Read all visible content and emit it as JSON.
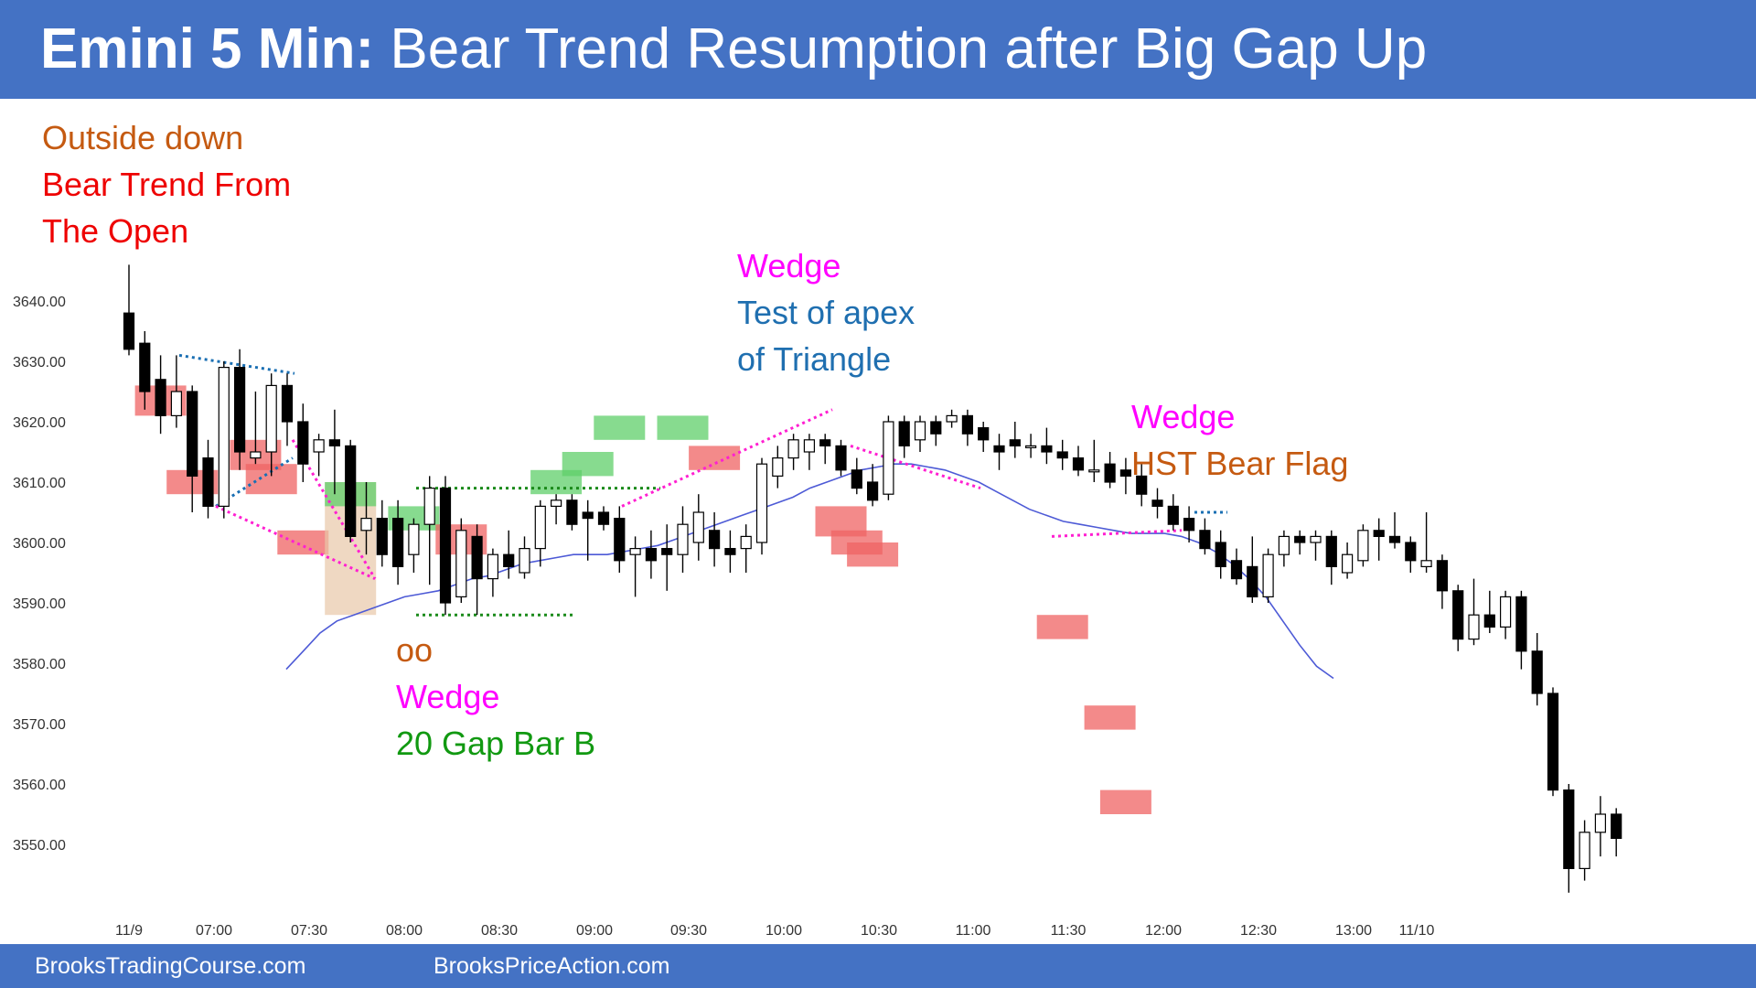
{
  "header": {
    "title_bold": "Emini 5 Min:",
    "title_rest": "Bear Trend Resumption after Big Gap Up"
  },
  "footer": {
    "link1": "BrooksTradingCourse.com",
    "link2": "BrooksPriceAction.com"
  },
  "colors": {
    "header_bg": "#4472c4",
    "candle_bear": "#000000",
    "candle_bull": "#ffffff",
    "ema": "#4d5ad6",
    "red_box": "#ef6363",
    "green_box": "#5fcf6a",
    "tan_box": "#e8c8a8",
    "magenta": "#ff1fd1",
    "blue_dotted": "#1a6fb3",
    "green_dotted": "#1b8b1b",
    "orange_text": "#c55a11",
    "red_text": "#ee0000",
    "magenta_text": "#ff00ff",
    "blue_text": "#1f6fb0",
    "green_text": "#119911"
  },
  "chart_data": {
    "type": "candlestick",
    "title": "Emini 5 Min: Bear Trend Resumption after Big Gap Up",
    "y_axis": {
      "ticks": [
        "3640.00",
        "3630.00",
        "3620.00",
        "3610.00",
        "3600.00",
        "3590.00",
        "3580.00",
        "3570.00",
        "3560.00",
        "3550.00"
      ],
      "range": [
        3542,
        3646
      ]
    },
    "x_axis": {
      "ticks": [
        "11/9",
        "07:00",
        "07:30",
        "08:00",
        "08:30",
        "09:00",
        "09:30",
        "10:00",
        "10:30",
        "11:00",
        "11:30",
        "12:00",
        "12:30",
        "13:00",
        "11/10"
      ]
    },
    "candles": [
      {
        "o": 3638,
        "h": 3646,
        "l": 3631,
        "c": 3632
      },
      {
        "o": 3633,
        "h": 3635,
        "l": 3622,
        "c": 3625
      },
      {
        "o": 3627,
        "h": 3631,
        "l": 3618,
        "c": 3621
      },
      {
        "o": 3621,
        "h": 3631,
        "l": 3619,
        "c": 3625
      },
      {
        "o": 3625,
        "h": 3626,
        "l": 3605,
        "c": 3611
      },
      {
        "o": 3614,
        "h": 3617,
        "l": 3604,
        "c": 3606
      },
      {
        "o": 3606,
        "h": 3630,
        "l": 3604,
        "c": 3629
      },
      {
        "o": 3629,
        "h": 3632,
        "l": 3612,
        "c": 3615
      },
      {
        "o": 3614,
        "h": 3625,
        "l": 3613,
        "c": 3615
      },
      {
        "o": 3615,
        "h": 3628,
        "l": 3611,
        "c": 3626
      },
      {
        "o": 3626,
        "h": 3628,
        "l": 3616,
        "c": 3620
      },
      {
        "o": 3620,
        "h": 3623,
        "l": 3610,
        "c": 3613
      },
      {
        "o": 3615,
        "h": 3618,
        "l": 3611,
        "c": 3617
      },
      {
        "o": 3617,
        "h": 3622,
        "l": 3608,
        "c": 3616
      },
      {
        "o": 3616,
        "h": 3617,
        "l": 3600,
        "c": 3601
      },
      {
        "o": 3602,
        "h": 3610,
        "l": 3598,
        "c": 3604
      },
      {
        "o": 3604,
        "h": 3607,
        "l": 3596,
        "c": 3598
      },
      {
        "o": 3604,
        "h": 3607,
        "l": 3593,
        "c": 3596
      },
      {
        "o": 3598,
        "h": 3604,
        "l": 3595,
        "c": 3603
      },
      {
        "o": 3603,
        "h": 3611,
        "l": 3593,
        "c": 3609
      },
      {
        "o": 3609,
        "h": 3611,
        "l": 3588,
        "c": 3590
      },
      {
        "o": 3591,
        "h": 3604,
        "l": 3590,
        "c": 3602
      },
      {
        "o": 3601,
        "h": 3603,
        "l": 3588,
        "c": 3594
      },
      {
        "o": 3594,
        "h": 3599,
        "l": 3591,
        "c": 3598
      },
      {
        "o": 3598,
        "h": 3602,
        "l": 3594,
        "c": 3596
      },
      {
        "o": 3595,
        "h": 3601,
        "l": 3594,
        "c": 3599
      },
      {
        "o": 3599,
        "h": 3607,
        "l": 3596,
        "c": 3606
      },
      {
        "o": 3606,
        "h": 3608,
        "l": 3603,
        "c": 3607
      },
      {
        "o": 3607,
        "h": 3608,
        "l": 3602,
        "c": 3603
      },
      {
        "o": 3605,
        "h": 3607,
        "l": 3597,
        "c": 3604
      },
      {
        "o": 3605,
        "h": 3606,
        "l": 3602,
        "c": 3603
      },
      {
        "o": 3604,
        "h": 3606,
        "l": 3595,
        "c": 3597
      },
      {
        "o": 3598,
        "h": 3601,
        "l": 3591,
        "c": 3599
      },
      {
        "o": 3599,
        "h": 3602,
        "l": 3594,
        "c": 3597
      },
      {
        "o": 3599,
        "h": 3603,
        "l": 3592,
        "c": 3598
      },
      {
        "o": 3598,
        "h": 3606,
        "l": 3595,
        "c": 3603
      },
      {
        "o": 3600,
        "h": 3608,
        "l": 3597,
        "c": 3605
      },
      {
        "o": 3602,
        "h": 3605,
        "l": 3596,
        "c": 3599
      },
      {
        "o": 3599,
        "h": 3602,
        "l": 3595,
        "c": 3598
      },
      {
        "o": 3599,
        "h": 3603,
        "l": 3595,
        "c": 3601
      },
      {
        "o": 3600,
        "h": 3614,
        "l": 3598,
        "c": 3613
      },
      {
        "o": 3611,
        "h": 3616,
        "l": 3609,
        "c": 3614
      },
      {
        "o": 3614,
        "h": 3618,
        "l": 3612,
        "c": 3617
      },
      {
        "o": 3615,
        "h": 3618,
        "l": 3612,
        "c": 3617
      },
      {
        "o": 3617,
        "h": 3618,
        "l": 3613,
        "c": 3616
      },
      {
        "o": 3616,
        "h": 3617,
        "l": 3611,
        "c": 3612
      },
      {
        "o": 3612,
        "h": 3614,
        "l": 3608,
        "c": 3609
      },
      {
        "o": 3610,
        "h": 3613,
        "l": 3606,
        "c": 3607
      },
      {
        "o": 3608,
        "h": 3621,
        "l": 3607,
        "c": 3620
      },
      {
        "o": 3620,
        "h": 3621,
        "l": 3614,
        "c": 3616
      },
      {
        "o": 3617,
        "h": 3621,
        "l": 3615,
        "c": 3620
      },
      {
        "o": 3620,
        "h": 3621,
        "l": 3616,
        "c": 3618
      },
      {
        "o": 3620,
        "h": 3622,
        "l": 3619,
        "c": 3621
      },
      {
        "o": 3621,
        "h": 3622,
        "l": 3616,
        "c": 3618
      },
      {
        "o": 3619,
        "h": 3620,
        "l": 3615,
        "c": 3617
      },
      {
        "o": 3616,
        "h": 3618,
        "l": 3612,
        "c": 3615
      },
      {
        "o": 3617,
        "h": 3620,
        "l": 3614,
        "c": 3616
      },
      {
        "o": 3616,
        "h": 3618,
        "l": 3614,
        "c": 3616
      },
      {
        "o": 3616,
        "h": 3619,
        "l": 3613,
        "c": 3615
      },
      {
        "o": 3615,
        "h": 3617,
        "l": 3612,
        "c": 3614
      },
      {
        "o": 3614,
        "h": 3616,
        "l": 3611,
        "c": 3612
      },
      {
        "o": 3612,
        "h": 3617,
        "l": 3610,
        "c": 3612
      },
      {
        "o": 3613,
        "h": 3615,
        "l": 3609,
        "c": 3610
      },
      {
        "o": 3612,
        "h": 3614,
        "l": 3608,
        "c": 3611
      },
      {
        "o": 3611,
        "h": 3613,
        "l": 3606,
        "c": 3608
      },
      {
        "o": 3607,
        "h": 3609,
        "l": 3604,
        "c": 3606
      },
      {
        "o": 3606,
        "h": 3608,
        "l": 3602,
        "c": 3603
      },
      {
        "o": 3604,
        "h": 3606,
        "l": 3600,
        "c": 3602
      },
      {
        "o": 3602,
        "h": 3604,
        "l": 3598,
        "c": 3599
      },
      {
        "o": 3600,
        "h": 3602,
        "l": 3594,
        "c": 3596
      },
      {
        "o": 3597,
        "h": 3599,
        "l": 3593,
        "c": 3594
      },
      {
        "o": 3596,
        "h": 3601,
        "l": 3590,
        "c": 3591
      },
      {
        "o": 3591,
        "h": 3599,
        "l": 3590,
        "c": 3598
      },
      {
        "o": 3598,
        "h": 3602,
        "l": 3596,
        "c": 3601
      },
      {
        "o": 3601,
        "h": 3602,
        "l": 3598,
        "c": 3600
      },
      {
        "o": 3600,
        "h": 3602,
        "l": 3597,
        "c": 3601
      },
      {
        "o": 3601,
        "h": 3602,
        "l": 3593,
        "c": 3596
      },
      {
        "o": 3595,
        "h": 3600,
        "l": 3594,
        "c": 3598
      },
      {
        "o": 3597,
        "h": 3603,
        "l": 3596,
        "c": 3602
      },
      {
        "o": 3602,
        "h": 3604,
        "l": 3597,
        "c": 3601
      },
      {
        "o": 3601,
        "h": 3605,
        "l": 3599,
        "c": 3600
      },
      {
        "o": 3600,
        "h": 3601,
        "l": 3595,
        "c": 3597
      },
      {
        "o": 3596,
        "h": 3605,
        "l": 3595,
        "c": 3597
      },
      {
        "o": 3597,
        "h": 3598,
        "l": 3589,
        "c": 3592
      },
      {
        "o": 3592,
        "h": 3593,
        "l": 3582,
        "c": 3584
      },
      {
        "o": 3584,
        "h": 3594,
        "l": 3583,
        "c": 3588
      },
      {
        "o": 3588,
        "h": 3592,
        "l": 3585,
        "c": 3586
      },
      {
        "o": 3586,
        "h": 3592,
        "l": 3584,
        "c": 3591
      },
      {
        "o": 3591,
        "h": 3592,
        "l": 3579,
        "c": 3582
      },
      {
        "o": 3582,
        "h": 3585,
        "l": 3573,
        "c": 3575
      },
      {
        "o": 3575,
        "h": 3576,
        "l": 3558,
        "c": 3559
      },
      {
        "o": 3559,
        "h": 3560,
        "l": 3542,
        "c": 3546
      },
      {
        "o": 3546,
        "h": 3554,
        "l": 3544,
        "c": 3552
      },
      {
        "o": 3552,
        "h": 3558,
        "l": 3548,
        "c": 3555
      },
      {
        "o": 3555,
        "h": 3556,
        "l": 3548,
        "c": 3551
      }
    ],
    "ema_20": [
      3579,
      3582,
      3585,
      3587,
      3588,
      3589,
      3590,
      3591,
      3591.5,
      3592,
      3593,
      3594,
      3594.5,
      3595.5,
      3596.5,
      3597,
      3597.5,
      3598,
      3598,
      3598,
      3598.5,
      3599,
      3599.5,
      3600.5,
      3601.5,
      3602.5,
      3603.5,
      3604.5,
      3605.5,
      3606.5,
      3607.5,
      3609,
      3610,
      3611,
      3612,
      3612.5,
      3613,
      3613,
      3612.5,
      3612,
      3611,
      3610,
      3608.5,
      3607,
      3605.5,
      3604.5,
      3603.5,
      3603,
      3602.5,
      3602,
      3601.5,
      3601.5,
      3601.5,
      3601,
      3600,
      3598.5,
      3596.5,
      3594,
      3591,
      3587,
      3583,
      3579.5,
      3577.5
    ],
    "annotations": {
      "top_left": [
        "Outside down",
        "Bear Trend From",
        "The Open"
      ],
      "bottom_mid": [
        "oo",
        "Wedge",
        "20 Gap Bar B"
      ],
      "top_mid": [
        "Wedge",
        "Test of apex",
        "of Triangle"
      ],
      "right": [
        "Wedge",
        "HST Bear Flag"
      ]
    }
  }
}
